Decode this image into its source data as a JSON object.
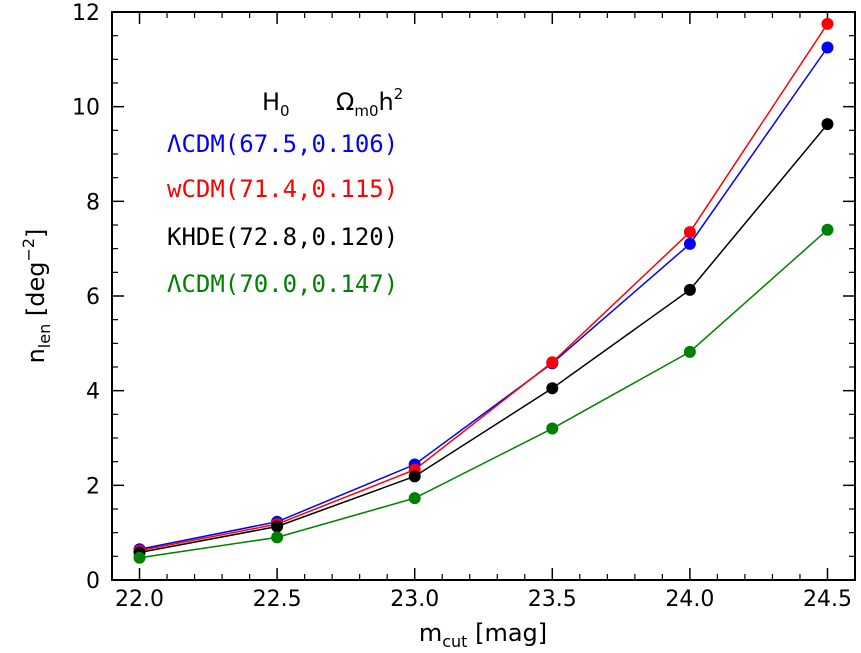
{
  "chart_data": {
    "type": "line",
    "x": [
      22.0,
      22.5,
      23.0,
      23.5,
      24.0,
      24.5
    ],
    "xlim": [
      21.9,
      24.6
    ],
    "ylim": [
      0,
      12
    ],
    "xticks": [
      "22.0",
      "22.5",
      "23.0",
      "23.5",
      "24.0",
      "24.5"
    ],
    "yticks": [
      "0",
      "2",
      "4",
      "6",
      "8",
      "10",
      "12"
    ],
    "xlabel": {
      "main": "m",
      "sub": "cut",
      "rest": " [mag]"
    },
    "ylabel": {
      "main": "n",
      "sub": "len",
      "rest": " [deg",
      "sup": "−2",
      "end": "]"
    },
    "legend_header": {
      "h0": "H",
      "h0_sub": "0",
      "om": "Ω",
      "om_sub": "m0",
      "om_rest": "h",
      "om_sup": "2"
    },
    "series": [
      {
        "name": "ΛCDM(67.5,0.106)",
        "color": "#0000ff",
        "values": [
          0.65,
          1.23,
          2.44,
          4.58,
          7.1,
          11.25
        ]
      },
      {
        "name": "wCDM(71.4,0.115)",
        "color": "#ff0000",
        "values": [
          0.62,
          1.18,
          2.33,
          4.6,
          7.35,
          11.75
        ]
      },
      {
        "name": "KHDE(72.8,0.120)",
        "color": "#000000",
        "values": [
          0.58,
          1.13,
          2.19,
          4.05,
          6.13,
          9.63
        ]
      },
      {
        "name": "ΛCDM(70.0,0.147)",
        "color": "#008000",
        "values": [
          0.47,
          0.9,
          1.73,
          3.2,
          4.82,
          7.4
        ]
      }
    ]
  }
}
